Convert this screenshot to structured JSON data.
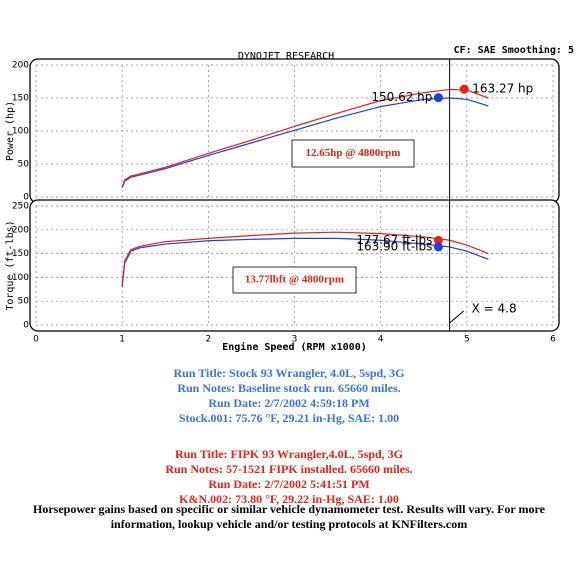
{
  "header": {
    "title": "DYNOJET RESEARCH",
    "settings": "CF: SAE  Smoothing: 5"
  },
  "chart_data": [
    {
      "type": "line",
      "ylabel": "Power (hp)",
      "xlim": [
        0,
        6
      ],
      "xticks": [
        0,
        1,
        2,
        3,
        4,
        5,
        6
      ],
      "ylim": [
        0,
        200
      ],
      "yticks": [
        0,
        50,
        100,
        150,
        200
      ],
      "grid": true,
      "x": [
        1.0,
        1.03,
        1.1,
        1.2,
        1.5,
        2,
        2.5,
        3,
        3.5,
        4,
        4.5,
        4.8,
        5,
        5.25
      ],
      "series": [
        {
          "color": "#1f3fe0",
          "values": [
            14,
            24,
            30,
            33,
            43,
            63,
            82,
            101,
            120,
            137,
            148,
            150,
            148,
            138
          ]
        },
        {
          "color": "#e8221a",
          "values": [
            16,
            26,
            32,
            35,
            45,
            66,
            86,
            107,
            127,
            146,
            158,
            163,
            162,
            150
          ]
        }
      ],
      "markers": [
        {
          "x": 4.97,
          "y": 163.27,
          "label": "163.27 hp",
          "color": "#e8221a"
        },
        {
          "x": 4.67,
          "y": 150.62,
          "label": "150.62 hp",
          "color": "#1f3fe0"
        }
      ],
      "note": "12.65hp @ 4800rpm",
      "cursor": 4.8
    },
    {
      "type": "line",
      "ylabel": "Torque (ft-lbs)",
      "xlabel": "Engine Speed (RPM x1000)",
      "xlim": [
        0,
        6
      ],
      "xticks": [
        0,
        1,
        2,
        3,
        4,
        5,
        6
      ],
      "ylim": [
        0,
        250
      ],
      "yticks": [
        0,
        50,
        100,
        150,
        200,
        250
      ],
      "grid": true,
      "x": [
        1.0,
        1.03,
        1.1,
        1.2,
        1.5,
        2,
        2.5,
        3,
        3.5,
        4,
        4.5,
        4.8,
        5,
        5.25
      ],
      "series": [
        {
          "color": "#1f3fe0",
          "values": [
            80,
            130,
            155,
            162,
            170,
            177,
            180,
            182,
            182,
            178,
            170,
            164,
            155,
            138
          ]
        },
        {
          "color": "#e8221a",
          "values": [
            85,
            135,
            158,
            165,
            175,
            182,
            188,
            193,
            195,
            192,
            185,
            178,
            168,
            150
          ]
        }
      ],
      "markers": [
        {
          "x": 4.67,
          "y": 177.67,
          "label": "177.67 ft-lbs",
          "color": "#e8221a"
        },
        {
          "x": 4.67,
          "y": 163.9,
          "label": "163.90 ft-lbs",
          "color": "#1f3fe0"
        }
      ],
      "note": "13.77lbft @ 4800rpm",
      "cursor": {
        "value": 4.8,
        "label": "X = 4.8"
      }
    }
  ],
  "runs": [
    {
      "color": "#3a74d9",
      "lines": [
        "Run Title: Stock 93 Wrangler, 4.0L, 5spd, 3G",
        "Run Notes: Baseline stock run. 65660 miles.",
        "Run Date: 2/7/2002 4:59:18 PM",
        "Stock.001: 75.76 °F, 29.21 in-Hg, SAE: 1.00"
      ]
    },
    {
      "color": "#e8221a",
      "lines": [
        "Run Title: FIPK 93 Wrangler,4.0L, 5spd, 3G",
        "Run Notes: 57-1521 FIPK installed. 65660 miles.",
        "Run Date: 2/7/2002 5:41:51 PM",
        "K&N.002: 73.80 °F, 29.22 in-Hg, SAE: 1.00"
      ]
    }
  ],
  "footer": [
    "Horsepower gains based on specific or similar vehicle dynamometer test. Results will vary. For more",
    "information, lookup vehicle and/or testing protocols at KNFilters.com"
  ]
}
